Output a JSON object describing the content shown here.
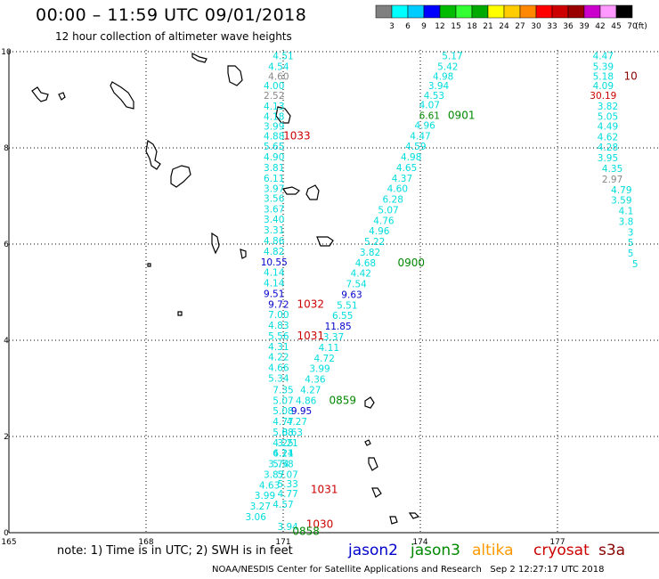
{
  "header": {
    "title": "00:00 – 11:59 UTC 09/01/2018",
    "subtitle": "12 hour collection of altimeter wave heights"
  },
  "colorbar": {
    "colors": [
      "#808080",
      "#00ffff",
      "#00ccff",
      "#0000ff",
      "#00bb00",
      "#33ff33",
      "#00aa00",
      "#ffff00",
      "#ffcc00",
      "#ff8800",
      "#ff0000",
      "#cc0000",
      "#990000",
      "#cc00cc",
      "#ff99ff",
      "#000000"
    ],
    "ticks": [
      "3",
      "6",
      "9",
      "12",
      "15",
      "18",
      "21",
      "24",
      "27",
      "30",
      "33",
      "36",
      "39",
      "42",
      "45",
      "70"
    ],
    "unit": "(ft)"
  },
  "axes": {
    "x_ticks": [
      "165",
      "168",
      "171",
      "174",
      "177"
    ],
    "y_ticks": [
      "0",
      "2",
      "4",
      "6",
      "8",
      "10"
    ]
  },
  "tracks": [
    {
      "id": "track-1",
      "values": [
        {
          "v": "4.51",
          "lon": 171.0,
          "lat": 9.84,
          "c": "#00dddd"
        },
        {
          "v": "4.54",
          "lon": 170.9,
          "lat": 9.62,
          "c": "#00dddd"
        },
        {
          "v": "4.60",
          "lon": 170.9,
          "lat": 9.42,
          "c": "#888888"
        },
        {
          "v": "4.00",
          "lon": 170.8,
          "lat": 9.22,
          "c": "#00dddd"
        },
        {
          "v": "2.52",
          "lon": 170.8,
          "lat": 9.02,
          "c": "#888888"
        },
        {
          "v": "4.13",
          "lon": 170.8,
          "lat": 8.8,
          "c": "#00dddd"
        },
        {
          "v": "4.18",
          "lon": 170.8,
          "lat": 8.58,
          "c": "#00dddd"
        },
        {
          "v": "3.99",
          "lon": 170.8,
          "lat": 8.38,
          "c": "#00dddd"
        },
        {
          "v": "4.88",
          "lon": 170.8,
          "lat": 8.18,
          "c": "#00dddd"
        },
        {
          "v": "5.65",
          "lon": 170.8,
          "lat": 7.96,
          "c": "#00dddd"
        },
        {
          "v": "4.90",
          "lon": 170.8,
          "lat": 7.74,
          "c": "#00dddd"
        },
        {
          "v": "3.81",
          "lon": 170.8,
          "lat": 7.52,
          "c": "#00dddd"
        },
        {
          "v": "6.11",
          "lon": 170.8,
          "lat": 7.3,
          "c": "#00dddd"
        },
        {
          "v": "3.97",
          "lon": 170.8,
          "lat": 7.08,
          "c": "#00dddd"
        },
        {
          "v": "3.56",
          "lon": 170.8,
          "lat": 6.88,
          "c": "#00dddd"
        },
        {
          "v": "3.67",
          "lon": 170.8,
          "lat": 6.66,
          "c": "#00dddd"
        },
        {
          "v": "3.40",
          "lon": 170.8,
          "lat": 6.44,
          "c": "#00dddd"
        },
        {
          "v": "3.31",
          "lon": 170.8,
          "lat": 6.22,
          "c": "#00dddd"
        },
        {
          "v": "4.86",
          "lon": 170.8,
          "lat": 6.0,
          "c": "#00dddd"
        },
        {
          "v": "4.82",
          "lon": 170.8,
          "lat": 5.78,
          "c": "#00dddd"
        },
        {
          "v": "10.55",
          "lon": 170.8,
          "lat": 5.56,
          "c": "#0000cc"
        },
        {
          "v": "4.14",
          "lon": 170.8,
          "lat": 5.34,
          "c": "#00dddd"
        },
        {
          "v": "4.14",
          "lon": 170.8,
          "lat": 5.12,
          "c": "#00dddd"
        },
        {
          "v": "9.51",
          "lon": 170.8,
          "lat": 4.9,
          "c": "#0000cc"
        },
        {
          "v": "9.72",
          "lon": 170.9,
          "lat": 4.68,
          "c": "#0000cc"
        },
        {
          "v": "7.00",
          "lon": 170.9,
          "lat": 4.46,
          "c": "#00dddd"
        },
        {
          "v": "4.83",
          "lon": 170.9,
          "lat": 4.24,
          "c": "#00dddd"
        },
        {
          "v": "5.56",
          "lon": 170.9,
          "lat": 4.02,
          "c": "#00dddd"
        },
        {
          "v": "4.31",
          "lon": 170.9,
          "lat": 3.8,
          "c": "#00dddd"
        },
        {
          "v": "4.22",
          "lon": 170.9,
          "lat": 3.58,
          "c": "#00dddd"
        },
        {
          "v": "4.66",
          "lon": 170.9,
          "lat": 3.36,
          "c": "#00dddd"
        },
        {
          "v": "5.34",
          "lon": 170.9,
          "lat": 3.14,
          "c": "#00dddd"
        },
        {
          "v": "7.35",
          "lon": 171.0,
          "lat": 2.9,
          "c": "#00dddd"
        },
        {
          "v": "5.07",
          "lon": 171.0,
          "lat": 2.68,
          "c": "#00dddd"
        },
        {
          "v": "5.08",
          "lon": 171.0,
          "lat": 2.46,
          "c": "#00dddd"
        },
        {
          "v": "4.77",
          "lon": 171.0,
          "lat": 2.24,
          "c": "#00dddd"
        },
        {
          "v": "5.08",
          "lon": 171.0,
          "lat": 2.02,
          "c": "#00dddd"
        },
        {
          "v": "4.25",
          "lon": 171.0,
          "lat": 1.8,
          "c": "#00dddd"
        },
        {
          "v": "6.11",
          "lon": 171.0,
          "lat": 1.58,
          "c": "#00dddd"
        },
        {
          "v": "5.58",
          "lon": 171.0,
          "lat": 1.36,
          "c": "#00dddd"
        },
        {
          "v": "5.07",
          "lon": 171.1,
          "lat": 1.14,
          "c": "#00dddd"
        },
        {
          "v": "5.33",
          "lon": 171.1,
          "lat": 0.94,
          "c": "#00dddd"
        },
        {
          "v": "4.77",
          "lon": 171.1,
          "lat": 0.74,
          "c": "#00dddd"
        },
        {
          "v": "4.57",
          "lon": 171.0,
          "lat": 0.52,
          "c": "#00dddd"
        },
        {
          "v": "3.94",
          "lon": 171.1,
          "lat": 0.06,
          "c": "#00dddd"
        }
      ],
      "time_labels": [
        {
          "t": "1033",
          "lon": 171.3,
          "lat": 8.18,
          "c": "#cc0000"
        },
        {
          "t": "1032",
          "lon": 171.6,
          "lat": 4.68,
          "c": "#cc0000"
        },
        {
          "t": "1031",
          "lon": 171.6,
          "lat": 4.02,
          "c": "#cc0000"
        },
        {
          "t": "1031",
          "lon": 171.9,
          "lat": 0.82,
          "c": "#cc0000"
        },
        {
          "t": "1030",
          "lon": 171.8,
          "lat": 0.1,
          "c": "#cc0000"
        }
      ]
    },
    {
      "id": "track-2",
      "values": [
        {
          "v": "5.17",
          "lon": 174.7,
          "lat": 9.84,
          "c": "#00dddd"
        },
        {
          "v": "5.42",
          "lon": 174.6,
          "lat": 9.62,
          "c": "#00dddd"
        },
        {
          "v": "4.98",
          "lon": 174.5,
          "lat": 9.42,
          "c": "#00dddd"
        },
        {
          "v": "3.94",
          "lon": 174.4,
          "lat": 9.22,
          "c": "#00dddd"
        },
        {
          "v": "4.53",
          "lon": 174.3,
          "lat": 9.02,
          "c": "#00dddd"
        },
        {
          "v": "4.07",
          "lon": 174.2,
          "lat": 8.82,
          "c": "#00dddd"
        },
        {
          "v": "6.61",
          "lon": 174.2,
          "lat": 8.6,
          "c": "#008800"
        },
        {
          "v": "4.96",
          "lon": 174.1,
          "lat": 8.4,
          "c": "#00dddd"
        },
        {
          "v": "4.47",
          "lon": 174.0,
          "lat": 8.18,
          "c": "#00dddd"
        },
        {
          "v": "4.59",
          "lon": 173.9,
          "lat": 7.96,
          "c": "#00dddd"
        },
        {
          "v": "4.98",
          "lon": 173.8,
          "lat": 7.74,
          "c": "#00dddd"
        },
        {
          "v": "4.65",
          "lon": 173.7,
          "lat": 7.52,
          "c": "#00dddd"
        },
        {
          "v": "4.37",
          "lon": 173.6,
          "lat": 7.3,
          "c": "#00dddd"
        },
        {
          "v": "4.60",
          "lon": 173.5,
          "lat": 7.08,
          "c": "#00dddd"
        },
        {
          "v": "6.28",
          "lon": 173.4,
          "lat": 6.86,
          "c": "#00dddd"
        },
        {
          "v": "5.07",
          "lon": 173.3,
          "lat": 6.64,
          "c": "#00dddd"
        },
        {
          "v": "4.76",
          "lon": 173.2,
          "lat": 6.42,
          "c": "#00dddd"
        },
        {
          "v": "4.96",
          "lon": 173.1,
          "lat": 6.2,
          "c": "#00dddd"
        },
        {
          "v": "5.22",
          "lon": 173.0,
          "lat": 5.98,
          "c": "#00dddd"
        },
        {
          "v": "3.82",
          "lon": 172.9,
          "lat": 5.76,
          "c": "#00dddd"
        },
        {
          "v": "4.68",
          "lon": 172.8,
          "lat": 5.54,
          "c": "#00dddd"
        },
        {
          "v": "4.42",
          "lon": 172.7,
          "lat": 5.32,
          "c": "#00dddd"
        },
        {
          "v": "7.54",
          "lon": 172.6,
          "lat": 5.1,
          "c": "#00dddd"
        },
        {
          "v": "9.63",
          "lon": 172.5,
          "lat": 4.88,
          "c": "#0000cc"
        },
        {
          "v": "5.51",
          "lon": 172.4,
          "lat": 4.66,
          "c": "#00dddd"
        },
        {
          "v": "6.55",
          "lon": 172.3,
          "lat": 4.44,
          "c": "#00dddd"
        },
        {
          "v": "11.85",
          "lon": 172.2,
          "lat": 4.22,
          "c": "#0000cc"
        },
        {
          "v": "3.37",
          "lon": 172.1,
          "lat": 4.0,
          "c": "#00dddd"
        },
        {
          "v": "4.11",
          "lon": 172.0,
          "lat": 3.78,
          "c": "#00dddd"
        },
        {
          "v": "4.72",
          "lon": 171.9,
          "lat": 3.56,
          "c": "#00dddd"
        },
        {
          "v": "3.99",
          "lon": 171.8,
          "lat": 3.34,
          "c": "#00dddd"
        },
        {
          "v": "4.36",
          "lon": 171.7,
          "lat": 3.12,
          "c": "#00dddd"
        },
        {
          "v": "4.27",
          "lon": 171.6,
          "lat": 2.9,
          "c": "#00dddd"
        },
        {
          "v": "4.86",
          "lon": 171.5,
          "lat": 2.68,
          "c": "#00dddd"
        },
        {
          "v": "9.95",
          "lon": 171.4,
          "lat": 2.46,
          "c": "#0000cc"
        },
        {
          "v": "4.27",
          "lon": 171.3,
          "lat": 2.24,
          "c": "#00dddd"
        },
        {
          "v": "8.63",
          "lon": 171.2,
          "lat": 2.02,
          "c": "#00dddd"
        },
        {
          "v": "3.21",
          "lon": 171.1,
          "lat": 1.8,
          "c": "#00dddd"
        },
        {
          "v": "4.24",
          "lon": 171.0,
          "lat": 1.58,
          "c": "#00dddd"
        },
        {
          "v": "3.74",
          "lon": 170.9,
          "lat": 1.36,
          "c": "#00dddd"
        },
        {
          "v": "3.87",
          "lon": 170.8,
          "lat": 1.14,
          "c": "#00dddd"
        },
        {
          "v": "4.63",
          "lon": 170.7,
          "lat": 0.92,
          "c": "#00dddd"
        },
        {
          "v": "3.99",
          "lon": 170.6,
          "lat": 0.7,
          "c": "#00dddd"
        },
        {
          "v": "3.27",
          "lon": 170.5,
          "lat": 0.48,
          "c": "#00dddd"
        },
        {
          "v": "3.06",
          "lon": 170.4,
          "lat": 0.26,
          "c": "#00dddd"
        }
      ],
      "time_labels": [
        {
          "t": "0901",
          "lon": 174.9,
          "lat": 8.6,
          "c": "#008800"
        },
        {
          "t": "0900",
          "lon": 173.8,
          "lat": 5.54,
          "c": "#008800"
        },
        {
          "t": "0859",
          "lon": 172.3,
          "lat": 2.68,
          "c": "#008800"
        },
        {
          "t": "0858",
          "lon": 171.5,
          "lat": -0.05,
          "c": "#008800"
        }
      ]
    },
    {
      "id": "track-3",
      "values": [
        {
          "v": "4.47",
          "lon": 178.0,
          "lat": 9.84,
          "c": "#00dddd"
        },
        {
          "v": "5.39",
          "lon": 178.0,
          "lat": 9.62,
          "c": "#00dddd"
        },
        {
          "v": "5.18",
          "lon": 178.0,
          "lat": 9.42,
          "c": "#00dddd"
        },
        {
          "v": "4.09",
          "lon": 178.0,
          "lat": 9.22,
          "c": "#00dddd"
        },
        {
          "v": "30.19",
          "lon": 178.0,
          "lat": 9.02,
          "c": "#cc0000"
        },
        {
          "v": "3.82",
          "lon": 178.1,
          "lat": 8.8,
          "c": "#00dddd"
        },
        {
          "v": "5.05",
          "lon": 178.1,
          "lat": 8.58,
          "c": "#00dddd"
        },
        {
          "v": "4.49",
          "lon": 178.1,
          "lat": 8.38,
          "c": "#00dddd"
        },
        {
          "v": "4.62",
          "lon": 178.1,
          "lat": 8.16,
          "c": "#00dddd"
        },
        {
          "v": "4.28",
          "lon": 178.1,
          "lat": 7.94,
          "c": "#00dddd"
        },
        {
          "v": "3.95",
          "lon": 178.1,
          "lat": 7.72,
          "c": "#00dddd"
        },
        {
          "v": "4.35",
          "lon": 178.2,
          "lat": 7.5,
          "c": "#00dddd"
        },
        {
          "v": "2.97",
          "lon": 178.2,
          "lat": 7.28,
          "c": "#888888"
        },
        {
          "v": "4.79",
          "lon": 178.4,
          "lat": 7.06,
          "c": "#00dddd"
        },
        {
          "v": "3.59",
          "lon": 178.4,
          "lat": 6.84,
          "c": "#00dddd"
        },
        {
          "v": "4.1",
          "lon": 178.5,
          "lat": 6.62,
          "c": "#00dddd"
        },
        {
          "v": "3.8",
          "lon": 178.5,
          "lat": 6.4,
          "c": "#00dddd"
        },
        {
          "v": "3",
          "lon": 178.6,
          "lat": 6.18,
          "c": "#00dddd"
        },
        {
          "v": "5",
          "lon": 178.6,
          "lat": 5.96,
          "c": "#00dddd"
        },
        {
          "v": "5",
          "lon": 178.6,
          "lat": 5.74,
          "c": "#00dddd"
        },
        {
          "v": "5",
          "lon": 178.7,
          "lat": 5.52,
          "c": "#00dddd"
        }
      ],
      "time_labels": [
        {
          "t": "10",
          "lon": 178.6,
          "lat": 9.42,
          "c": "#880000"
        }
      ]
    }
  ],
  "footer": {
    "note": "note: 1) Time is in UTC; 2) SWH is in feet",
    "satellites": {
      "jason2": "jason2",
      "jason3": "jason3",
      "altika": "altika",
      "cryosat": "cryosat",
      "s3a": "s3a"
    },
    "credit": "NOAA/NESDIS Center for Satellite Applications and Research",
    "timestamp": "Sep  2 12:27:17 UTC 2018"
  }
}
